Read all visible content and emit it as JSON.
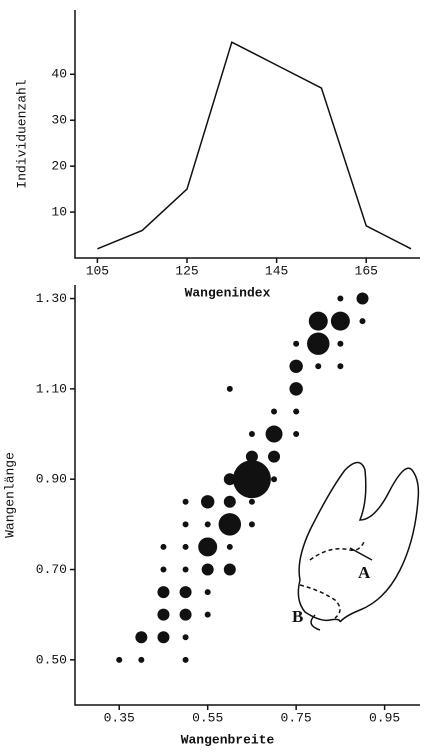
{
  "chart_data": [
    {
      "type": "line",
      "x_label": "Wangenindex",
      "y_label": "Individuenzahl",
      "x": [
        105,
        115,
        125,
        135,
        145,
        155,
        165,
        175
      ],
      "values": [
        2,
        6,
        15,
        47,
        42,
        37,
        7,
        2
      ],
      "xlim": [
        100,
        177
      ],
      "ylim": [
        0,
        54
      ],
      "xticks": [
        105,
        125,
        145,
        165
      ],
      "yticks": [
        10,
        20,
        30,
        40
      ],
      "color": "#111"
    },
    {
      "type": "bubble",
      "x_label": "Wangenbreite",
      "y_label": "Wangenlänge",
      "x": [
        0.35,
        0.4,
        0.5,
        0.4,
        0.45,
        0.5,
        0.45,
        0.5,
        0.55,
        0.45,
        0.5,
        0.55,
        0.45,
        0.5,
        0.55,
        0.6,
        0.45,
        0.5,
        0.55,
        0.6,
        0.5,
        0.55,
        0.6,
        0.65,
        0.5,
        0.55,
        0.6,
        0.65,
        0.6,
        0.65,
        0.7,
        0.65,
        0.7,
        0.65,
        0.7,
        0.75,
        0.7,
        0.75,
        0.6,
        0.75,
        0.75,
        0.8,
        0.85,
        0.75,
        0.8,
        0.85,
        0.8,
        0.85,
        0.9,
        0.85,
        0.9
      ],
      "values": [
        0.5,
        0.5,
        0.5,
        0.55,
        0.55,
        0.55,
        0.6,
        0.6,
        0.6,
        0.65,
        0.65,
        0.65,
        0.7,
        0.7,
        0.7,
        0.7,
        0.75,
        0.75,
        0.75,
        0.75,
        0.8,
        0.8,
        0.8,
        0.8,
        0.85,
        0.85,
        0.85,
        0.85,
        0.9,
        0.9,
        0.9,
        0.95,
        0.95,
        1.0,
        1.0,
        1.0,
        1.05,
        1.05,
        1.1,
        1.1,
        1.15,
        1.15,
        1.15,
        1.2,
        1.2,
        1.2,
        1.25,
        1.25,
        1.25,
        1.3,
        1.3
      ],
      "sizes": [
        1,
        1,
        1,
        4,
        4,
        1,
        4,
        4,
        1,
        4,
        4,
        1,
        1,
        1,
        4,
        4,
        1,
        1,
        10,
        1,
        1,
        1,
        14,
        1,
        1,
        5,
        4,
        1,
        4,
        40,
        1,
        4,
        4,
        1,
        8,
        1,
        1,
        1,
        1,
        5,
        5,
        1,
        1,
        1,
        14,
        1,
        10,
        10,
        1,
        1,
        4
      ],
      "xlim": [
        0.25,
        1.03
      ],
      "ylim": [
        0.4,
        1.33
      ],
      "xticks": [
        0.35,
        0.55,
        0.75,
        0.95
      ],
      "yticks": [
        {
          "value": 0.5,
          "label": "0.50"
        },
        {
          "value": 0.7,
          "label": "0.70"
        },
        {
          "value": 0.9,
          "label": "0.90"
        },
        {
          "value": 1.1,
          "label": "1.10"
        },
        {
          "value": 1.3,
          "label": "1.30"
        }
      ],
      "color": "#111",
      "annotations": [
        "A",
        "B"
      ]
    }
  ]
}
